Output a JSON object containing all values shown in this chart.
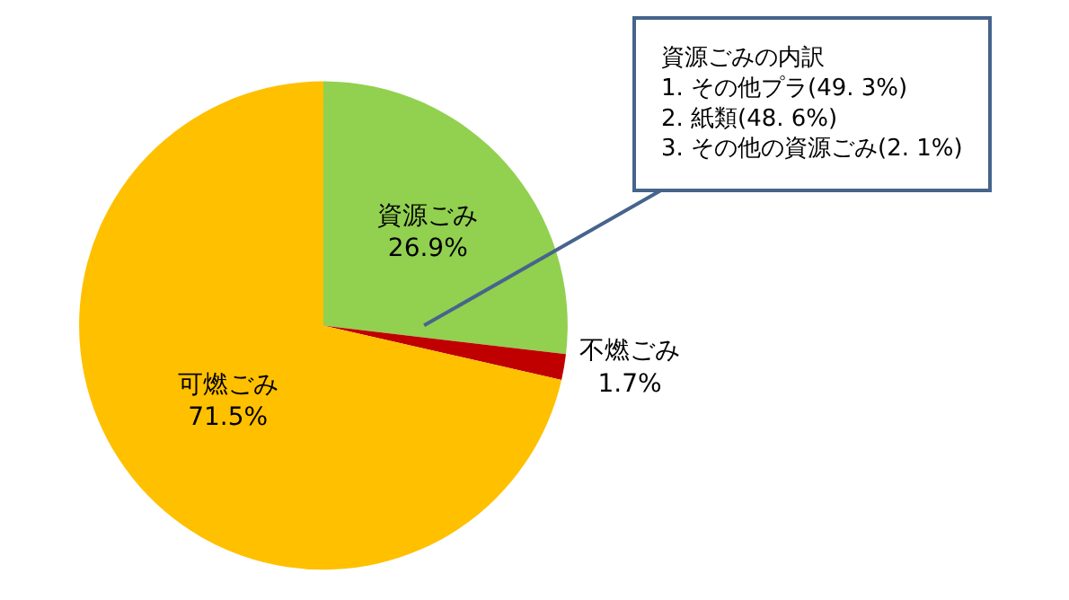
{
  "chart_data": {
    "type": "pie",
    "categories": [
      "資源ごみ",
      "不燃ごみ",
      "可燃ごみ"
    ],
    "values": [
      26.9,
      1.7,
      71.5
    ],
    "colors": [
      "#92d050",
      "#c00000",
      "#ffc000"
    ],
    "value_labels": [
      "26.9%",
      "1.7%",
      "71.5%"
    ],
    "legend": false,
    "annotations": [
      {
        "text": "資源ごみの内訳\n1. その他プラ(49. 3%)\n2. 紙類(48. 6%)\n3. その他の資源ごみ(2. 1%)",
        "x": "資源ごみ"
      }
    ]
  }
}
